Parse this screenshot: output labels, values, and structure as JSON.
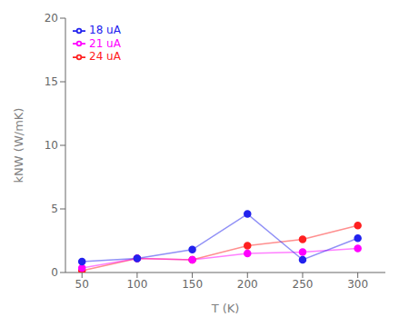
{
  "chart_data": {
    "type": "line",
    "xlabel": "T (K)",
    "ylabel": "kNW (W/mK)",
    "x": [
      50,
      100,
      150,
      200,
      250,
      300
    ],
    "series": [
      {
        "name": "24 uA",
        "color": "#ff2020",
        "values": [
          0.15,
          1.1,
          1.0,
          2.1,
          2.6,
          3.7
        ]
      },
      {
        "name": "21 uA",
        "color": "#ff00ff",
        "values": [
          0.35,
          1.1,
          1.0,
          1.5,
          1.6,
          1.9
        ]
      },
      {
        "name": "18 uA",
        "color": "#2222ee",
        "values": [
          0.85,
          1.1,
          1.8,
          4.6,
          1.0,
          2.7
        ]
      }
    ],
    "xlim": [
      35,
      325
    ],
    "xticks": [
      50,
      100,
      150,
      200,
      250,
      300
    ],
    "ylim": [
      0,
      20
    ],
    "yticks": [
      0,
      5,
      10,
      15,
      20
    ],
    "legend": "upper left",
    "marker": "circle",
    "grid": false
  }
}
